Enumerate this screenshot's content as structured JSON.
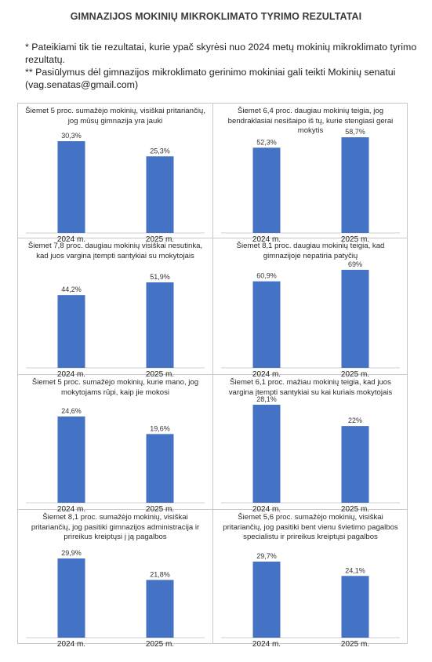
{
  "title": "GIMNAZIJOS MOKINIŲ MIKROKLIMATO TYRIMO REZULTATAI",
  "notes": [
    "* Pateikiami tik tie rezultatai, kurie ypač skyrėsi nuo 2024 metų mokinių mikroklimato tyrimo rezultatų.",
    "** Pasiūlymus dėl gimnazijos mikroklimato gerinimo mokiniai gali teikti Mokinių senatui (vag.senatas@gmail.com)"
  ],
  "colors": {
    "bar": "#4472c4",
    "grid": "#c8c8c8",
    "axis": "#d0d0d0"
  },
  "chart_data": [
    {
      "type": "bar",
      "title": "Šiemet 5 proc. sumažėjo mokinių, visiškai pritariančių, jog mūsų gimnazija yra jauki",
      "categories": [
        "2024 m.",
        "2025 m."
      ],
      "values": [
        30.3,
        25.3
      ],
      "value_labels": [
        "30,3%",
        "25,3%"
      ]
    },
    {
      "type": "bar",
      "title": "Šiemet 6,4 proc. daugiau mokinių teigia, jog bendraklasiai nesišaipo iš tų, kurie stengiasi gerai mokytis",
      "categories": [
        "2024 m.",
        "2025 m."
      ],
      "values": [
        52.3,
        58.7
      ],
      "value_labels": [
        "52,3%",
        "58,7%"
      ]
    },
    {
      "type": "bar",
      "title": "Šiemet 7,8 proc. daugiau mokinių visiškai nesutinka, kad juos vargina įtempti santykiai su mokytojais",
      "categories": [
        "2024 m.",
        "2025 m."
      ],
      "values": [
        44.2,
        51.9
      ],
      "value_labels": [
        "44,2%",
        "51,9%"
      ]
    },
    {
      "type": "bar",
      "title": "Šiemet 8,1 proc. daugiau mokinių teigia, kad gimnazijoje nepatiria patyčių",
      "categories": [
        "2024 m.",
        "2025 m."
      ],
      "values": [
        60.9,
        69
      ],
      "value_labels": [
        "60,9%",
        "69%"
      ]
    },
    {
      "type": "bar",
      "title": "Šiemet 5 proc. sumažėjo mokinių, kurie mano, jog mokytojams rūpi, kaip jie mokosi",
      "categories": [
        "2024 m.",
        "2025 m."
      ],
      "values": [
        24.6,
        19.6
      ],
      "value_labels": [
        "24,6%",
        "19,6%"
      ]
    },
    {
      "type": "bar",
      "title": "Šiemet 6,1 proc. mažiau mokinių teigia, kad juos vargina įtempti santykiai su kai kuriais mokytojais",
      "categories": [
        "2024 m.",
        "2025 m."
      ],
      "values": [
        28.1,
        22
      ],
      "value_labels": [
        "28,1%",
        "22%"
      ]
    },
    {
      "type": "bar",
      "title": "Šiemet 8,1 proc. sumažėjo mokinių, visiškai pritariančių, jog pasitiki gimnazijos administracija ir prireikus kreiptųsi į ją pagalbos",
      "categories": [
        "2024 m.",
        "2025 m."
      ],
      "values": [
        29.9,
        21.8
      ],
      "value_labels": [
        "29,9%",
        "21,8%"
      ]
    },
    {
      "type": "bar",
      "title": "Šiemet 5,6 proc. sumažėjo mokinių, visiškai pritariančių, jog pasitiki bent vienu švietimo pagalbos specialistu ir prireikus kreiptųsi pagalbos",
      "categories": [
        "2024 m.",
        "2025 m."
      ],
      "values": [
        29.7,
        24.1
      ],
      "value_labels": [
        "29,7%",
        "24,1%"
      ]
    }
  ]
}
